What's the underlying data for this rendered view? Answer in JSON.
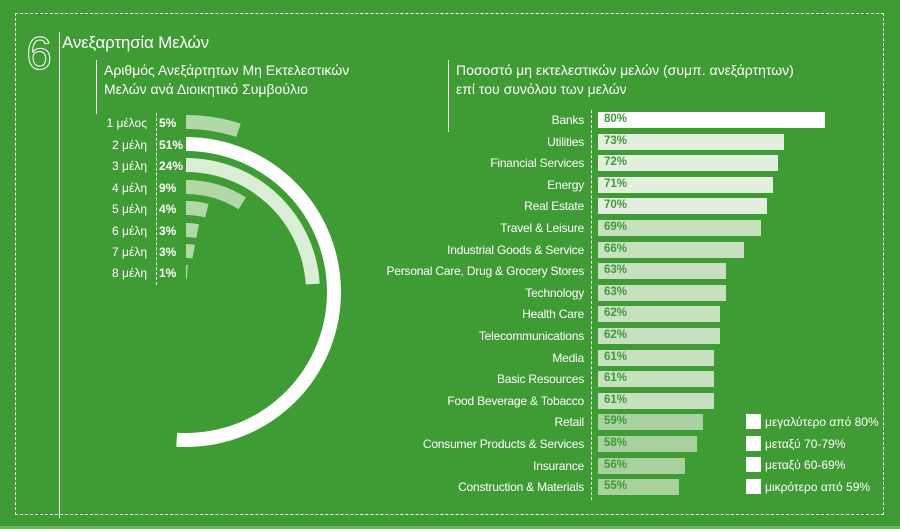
{
  "section": {
    "number": "6",
    "title": "Ανεξαρτησία Μελών"
  },
  "colors": {
    "background": "#3f9c35",
    "tier_80_plus": "#ffffff",
    "tier_70_79": "#e2efdf",
    "tier_60_69": "#c6e0c0",
    "tier_below_60": "#a8d19f",
    "ring_major": "#ffffff",
    "ring_second": "#daeed6",
    "ring_minor": "#b1d9a8"
  },
  "chart_data": [
    {
      "type": "radial-bar",
      "title": "Αριθμός Ανεξάρτητων  Μη Εκτελεστικών Μελών ανά  Διοικητικό  Συμβούλιο",
      "title_lines": [
        "Αριθμός Ανεξάρτητων  Μη Εκτελεστικών",
        "Μελών ανά  Διοικητικό  Συμβούλιο"
      ],
      "categories": [
        "1 μέλος",
        "2 μέλη",
        "3 μέλη",
        "4 μέλη",
        "5 μέλη",
        "6 μέλη",
        "7 μέλη",
        "8 μέλη"
      ],
      "values": [
        5,
        51,
        24,
        9,
        4,
        3,
        3,
        1
      ],
      "value_labels": [
        "5%",
        "51%",
        "24%",
        "9%",
        "4%",
        "3%",
        "3%",
        "1%"
      ],
      "unit": "%",
      "full_sweep_value": 100
    },
    {
      "type": "bar",
      "orientation": "horizontal",
      "title": "Ποσοστό μη εκτελεστικών  μελών (συμπ.  ανεξάρτητων) επί του  συνόλου  των  μελών",
      "title_lines": [
        "Ποσοστό μη εκτελεστικών  μελών (συμπ.  ανεξάρτητων)",
        "επί του  συνόλου  των  μελών"
      ],
      "categories": [
        "Banks",
        "Utilities",
        "Financial Services",
        "Energy",
        "Real Estate",
        "Travel & Leisure",
        "Industrial Goods & Service",
        "Personal Care, Drug & Grocery Stores",
        "Technology",
        "Health Care",
        "Telecommunications",
        "Media",
        "Basic Resources",
        "Food Beverage & Tobacco",
        "Retail",
        "Consumer Products & Services",
        "Insurance",
        "Construction & Materials"
      ],
      "values": [
        80,
        73,
        72,
        71,
        70,
        69,
        66,
        63,
        63,
        62,
        62,
        61,
        61,
        61,
        59,
        58,
        56,
        55
      ],
      "value_labels": [
        "80%",
        "73%",
        "72%",
        "71%",
        "70%",
        "69%",
        "66%",
        "63%",
        "63%",
        "62%",
        "62%",
        "61%",
        "61%",
        "61%",
        "59%",
        "58%",
        "56%",
        "55%"
      ],
      "unit": "%",
      "xlim": [
        41,
        80
      ],
      "legend": {
        "position": "bottom-right",
        "entries": [
          "μεγαλύτερο  από  80%",
          "μεταξύ 70-79%",
          "μεταξύ 60-69%",
          "μικρότερο από 59%"
        ]
      }
    }
  ]
}
